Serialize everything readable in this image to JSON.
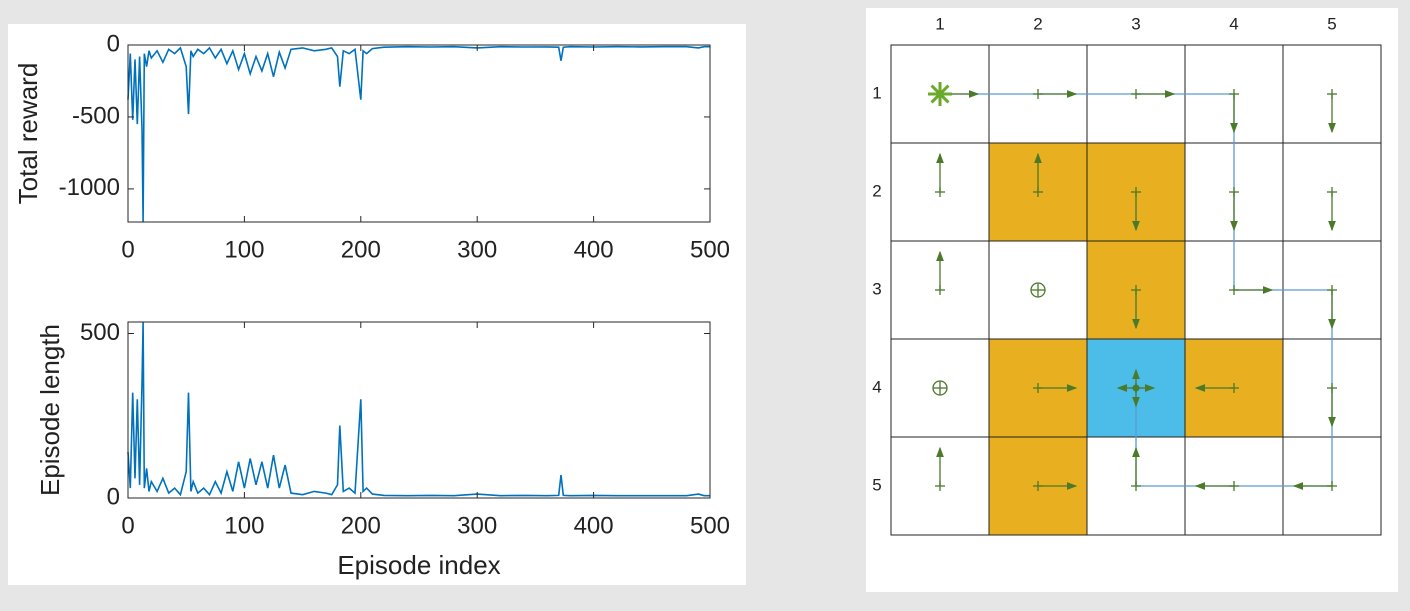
{
  "chart_data": [
    {
      "type": "line",
      "ylabel": "Total reward",
      "x": [
        0,
        2,
        4,
        6,
        8,
        10,
        12,
        13,
        14,
        16,
        18,
        20,
        25,
        30,
        35,
        40,
        45,
        50,
        52,
        54,
        56,
        60,
        65,
        70,
        75,
        80,
        85,
        90,
        95,
        100,
        105,
        110,
        115,
        120,
        125,
        130,
        135,
        140,
        150,
        160,
        170,
        175,
        180,
        182,
        185,
        190,
        195,
        200,
        202,
        205,
        210,
        220,
        240,
        260,
        280,
        300,
        320,
        340,
        360,
        370,
        372,
        374,
        380,
        400,
        420,
        440,
        460,
        480,
        490,
        495,
        500
      ],
      "series": [
        {
          "color": "#0072bd",
          "values": [
            -380,
            -60,
            -520,
            -100,
            -550,
            -80,
            -580,
            -1229,
            -60,
            -150,
            -40,
            -90,
            -40,
            -120,
            -30,
            -60,
            -20,
            -150,
            -480,
            -40,
            -80,
            -30,
            -60,
            -20,
            -90,
            -30,
            -130,
            -40,
            -170,
            -60,
            -200,
            -80,
            -180,
            -60,
            -220,
            -50,
            -160,
            -30,
            -20,
            -40,
            -30,
            -20,
            -80,
            -290,
            -40,
            -60,
            -30,
            -380,
            -40,
            -60,
            -25,
            -15,
            -12,
            -14,
            -12,
            -20,
            -12,
            -14,
            -13,
            -15,
            -110,
            -15,
            -12,
            -14,
            -12,
            -13,
            -12,
            -12,
            -20,
            -12,
            -12
          ]
        }
      ],
      "xlim": [
        0,
        500
      ],
      "xticks": [
        0,
        100,
        200,
        300,
        400,
        500
      ],
      "ylim": [
        -1230,
        0
      ],
      "yticks": [
        -1000,
        -500,
        0
      ]
    },
    {
      "type": "line",
      "ylabel": "Episode length",
      "xlabel": "Episode index",
      "x": [
        0,
        2,
        4,
        6,
        8,
        10,
        12,
        13,
        14,
        16,
        18,
        20,
        25,
        30,
        35,
        40,
        45,
        50,
        52,
        54,
        56,
        60,
        65,
        70,
        75,
        80,
        85,
        90,
        95,
        100,
        105,
        110,
        115,
        120,
        125,
        130,
        135,
        140,
        150,
        160,
        170,
        175,
        180,
        182,
        185,
        190,
        195,
        200,
        202,
        205,
        210,
        220,
        240,
        260,
        280,
        300,
        320,
        340,
        360,
        370,
        372,
        374,
        380,
        400,
        420,
        440,
        460,
        480,
        490,
        495,
        500
      ],
      "series": [
        {
          "color": "#0072bd",
          "values": [
            140,
            30,
            320,
            60,
            300,
            40,
            350,
            535,
            30,
            90,
            20,
            50,
            20,
            60,
            15,
            30,
            10,
            80,
            320,
            20,
            50,
            15,
            30,
            10,
            50,
            15,
            80,
            20,
            110,
            30,
            120,
            40,
            110,
            30,
            130,
            30,
            100,
            15,
            10,
            20,
            15,
            10,
            40,
            220,
            20,
            30,
            15,
            300,
            20,
            30,
            12,
            8,
            7,
            8,
            7,
            12,
            7,
            8,
            7,
            8,
            70,
            8,
            7,
            8,
            7,
            7,
            7,
            7,
            12,
            7,
            7
          ]
        }
      ],
      "xlim": [
        0,
        500
      ],
      "xticks": [
        0,
        100,
        200,
        300,
        400,
        500
      ],
      "ylim": [
        0,
        535
      ],
      "yticks": [
        0,
        500
      ]
    }
  ],
  "gridworld": {
    "columns": [
      "1",
      "2",
      "3",
      "4",
      "5"
    ],
    "rows": [
      "1",
      "2",
      "3",
      "4",
      "5"
    ]
  }
}
